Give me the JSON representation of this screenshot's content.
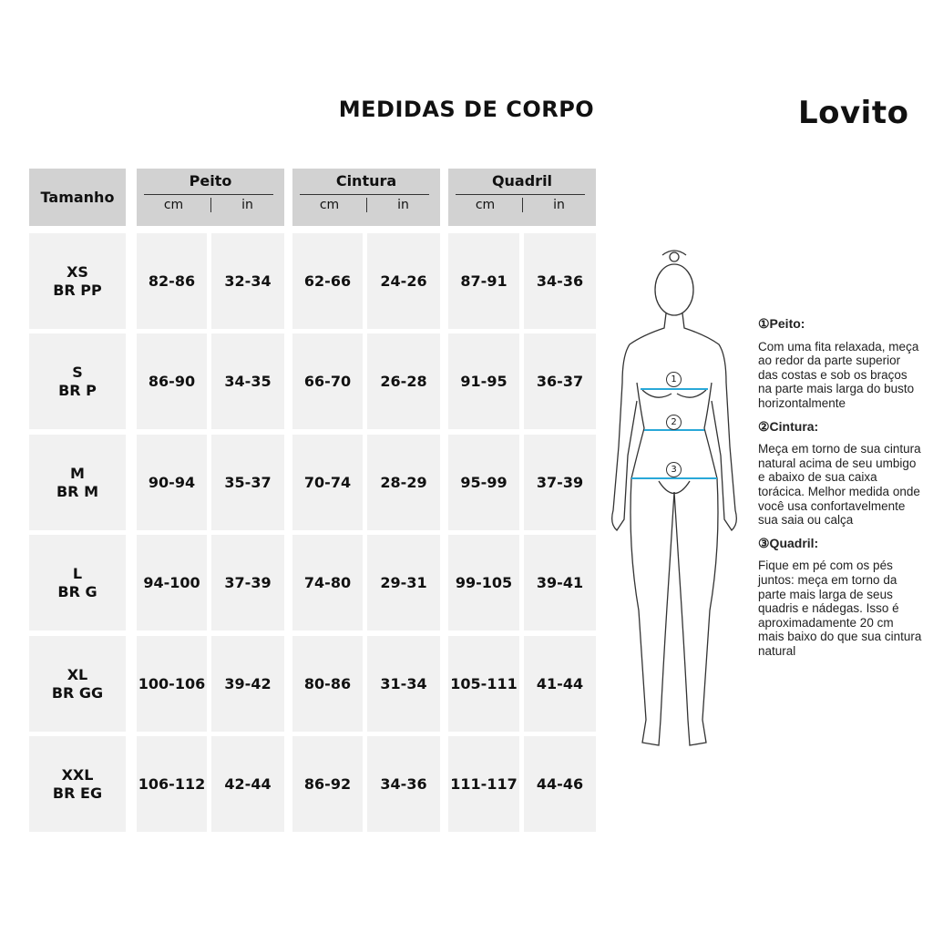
{
  "title": "MEDIDAS DE CORPO",
  "brand": "Lovito",
  "table": {
    "size_header": "Tamanho",
    "groups": [
      {
        "name": "Peito",
        "units": [
          "cm",
          "in"
        ]
      },
      {
        "name": "Cintura",
        "units": [
          "cm",
          "in"
        ]
      },
      {
        "name": "Quadril",
        "units": [
          "cm",
          "in"
        ]
      }
    ],
    "rows": [
      {
        "size": "XS",
        "br": "BR PP",
        "values": [
          "82-86",
          "32-34",
          "62-66",
          "24-26",
          "87-91",
          "34-36"
        ]
      },
      {
        "size": "S",
        "br": "BR P",
        "values": [
          "86-90",
          "34-35",
          "66-70",
          "26-28",
          "91-95",
          "36-37"
        ]
      },
      {
        "size": "M",
        "br": "BR M",
        "values": [
          "90-94",
          "35-37",
          "70-74",
          "28-29",
          "95-99",
          "37-39"
        ]
      },
      {
        "size": "L",
        "br": "BR G",
        "values": [
          "94-100",
          "37-39",
          "74-80",
          "29-31",
          "99-105",
          "39-41"
        ]
      },
      {
        "size": "XL",
        "br": "BR GG",
        "values": [
          "100-106",
          "39-42",
          "80-86",
          "31-34",
          "105-111",
          "41-44"
        ]
      },
      {
        "size": "XXL",
        "br": "BR EG",
        "values": [
          "106-112",
          "42-44",
          "86-92",
          "34-36",
          "111-117",
          "44-46"
        ]
      }
    ]
  },
  "figure": {
    "markers": [
      "1",
      "2",
      "3"
    ],
    "line_color": "#29a8d8"
  },
  "notes": [
    {
      "heading": "①Peito:",
      "text": "Com uma fita relaxada, meça ao redor da parte superior das costas e sob os braços na parte mais larga do busto horizontalmente"
    },
    {
      "heading": "②Cintura:",
      "text": "Meça em torno de sua cintura natural acima de seu umbigo e abaixo de sua caixa torácica. Melhor medida onde você usa confortavelmente sua saia ou calça"
    },
    {
      "heading": "③Quadril:",
      "text": "Fique em pé com os pés juntos: meça em torno da parte mais larga de seus quadris e nádegas. Isso é aproximadamente 20 cm mais baixo do que sua cintura natural"
    }
  ]
}
